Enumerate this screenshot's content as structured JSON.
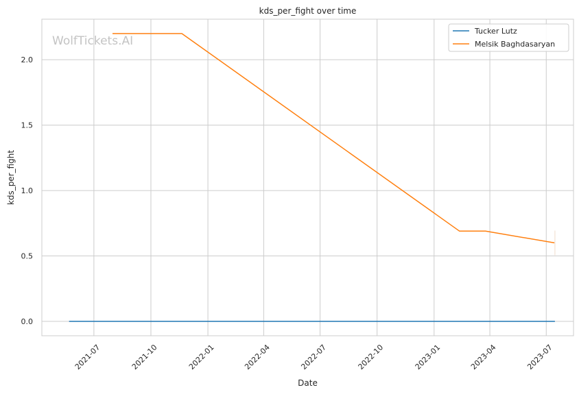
{
  "watermark": "WolfTickets.AI",
  "chart_data": {
    "type": "line",
    "title": "kds_per_fight over time",
    "xlabel": "Date",
    "ylabel": "kds_per_fight",
    "xlim": [
      "2021-04-08",
      "2023-08-14"
    ],
    "ylim": [
      -0.11,
      2.31
    ],
    "x_ticks": [
      "2021-07-01",
      "2021-10-01",
      "2022-01-01",
      "2022-04-01",
      "2022-07-01",
      "2022-10-01",
      "2023-01-01",
      "2023-04-01",
      "2023-07-01"
    ],
    "x_tick_labels": [
      "2021-07",
      "2021-10",
      "2022-01",
      "2022-04",
      "2022-07",
      "2022-10",
      "2023-01",
      "2023-04",
      "2023-07"
    ],
    "y_ticks": [
      0.0,
      0.5,
      1.0,
      1.5,
      2.0
    ],
    "y_tick_labels": [
      "0.0",
      "0.5",
      "1.0",
      "1.5",
      "2.0"
    ],
    "grid": true,
    "legend_position": "top-right",
    "series": [
      {
        "name": "Tucker Lutz",
        "color": "#1f77b4",
        "points": [
          {
            "x": "2021-05-22",
            "y": 0.0
          },
          {
            "x": "2023-07-15",
            "y": 0.0
          }
        ]
      },
      {
        "name": "Melsik Baghdasaryan",
        "color": "#ff7f0e",
        "points": [
          {
            "x": "2021-07-31",
            "y": 2.2
          },
          {
            "x": "2021-11-20",
            "y": 2.2
          },
          {
            "x": "2023-02-11",
            "y": 0.69
          },
          {
            "x": "2023-03-25",
            "y": 0.69
          },
          {
            "x": "2023-07-15",
            "y": 0.6
          }
        ]
      }
    ]
  }
}
